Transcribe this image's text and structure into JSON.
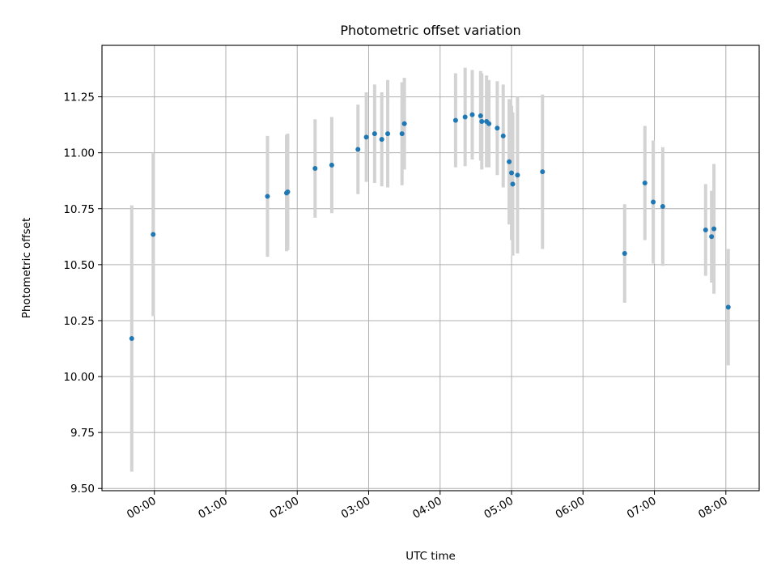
{
  "chart_data": {
    "type": "scatter",
    "title": "Photometric offset variation",
    "xlabel": "UTC time",
    "ylabel": "Photometric offset",
    "x_unit": "UTC time (HH:MM)",
    "xlim": [
      "-00:44",
      "08:28"
    ],
    "ylim": [
      9.49,
      11.48
    ],
    "x_ticks": [
      "00:00",
      "01:00",
      "02:00",
      "03:00",
      "04:00",
      "05:00",
      "06:00",
      "07:00",
      "08:00"
    ],
    "y_ticks": [
      "9.50",
      "9.75",
      "10.00",
      "10.25",
      "10.50",
      "10.75",
      "11.00",
      "11.25"
    ],
    "grid": true,
    "colors": {
      "point": "#1f77b4",
      "errorbar": "#d3d3d3",
      "grid": "#b0b0b0"
    },
    "points": [
      {
        "x": "-00:19",
        "y": 10.17,
        "err": 0.595
      },
      {
        "x": "-00:01",
        "y": 10.635,
        "err": 0.365
      },
      {
        "x": "01:35",
        "y": 10.805,
        "err": 0.27
      },
      {
        "x": "01:51",
        "y": 10.82,
        "err": 0.26
      },
      {
        "x": "01:52",
        "y": 10.825,
        "err": 0.26
      },
      {
        "x": "02:15",
        "y": 10.93,
        "err": 0.22
      },
      {
        "x": "02:29",
        "y": 10.945,
        "err": 0.215
      },
      {
        "x": "02:51",
        "y": 11.015,
        "err": 0.2
      },
      {
        "x": "02:58",
        "y": 11.07,
        "err": 0.2
      },
      {
        "x": "03:05",
        "y": 11.085,
        "err": 0.22
      },
      {
        "x": "03:11",
        "y": 11.06,
        "err": 0.21
      },
      {
        "x": "03:16",
        "y": 11.085,
        "err": 0.24
      },
      {
        "x": "03:28",
        "y": 11.085,
        "err": 0.23
      },
      {
        "x": "03:30",
        "y": 11.13,
        "err": 0.205
      },
      {
        "x": "04:13",
        "y": 11.145,
        "err": 0.21
      },
      {
        "x": "04:21",
        "y": 11.16,
        "err": 0.22
      },
      {
        "x": "04:27",
        "y": 11.17,
        "err": 0.2
      },
      {
        "x": "04:34",
        "y": 11.165,
        "err": 0.2
      },
      {
        "x": "04:35",
        "y": 11.14,
        "err": 0.215
      },
      {
        "x": "04:39",
        "y": 11.14,
        "err": 0.205
      },
      {
        "x": "04:41",
        "y": 11.13,
        "err": 0.195
      },
      {
        "x": "04:48",
        "y": 11.11,
        "err": 0.21
      },
      {
        "x": "04:53",
        "y": 11.075,
        "err": 0.23
      },
      {
        "x": "04:58",
        "y": 10.96,
        "err": 0.28
      },
      {
        "x": "05:00",
        "y": 10.91,
        "err": 0.3
      },
      {
        "x": "05:01",
        "y": 10.86,
        "err": 0.32
      },
      {
        "x": "05:05",
        "y": 10.9,
        "err": 0.35
      },
      {
        "x": "05:26",
        "y": 10.915,
        "err": 0.345
      },
      {
        "x": "06:35",
        "y": 10.55,
        "err": 0.22
      },
      {
        "x": "06:52",
        "y": 10.865,
        "err": 0.255
      },
      {
        "x": "06:59",
        "y": 10.78,
        "err": 0.275
      },
      {
        "x": "07:07",
        "y": 10.76,
        "err": 0.265
      },
      {
        "x": "07:43",
        "y": 10.655,
        "err": 0.205
      },
      {
        "x": "07:48",
        "y": 10.625,
        "err": 0.205
      },
      {
        "x": "07:50",
        "y": 10.66,
        "err": 0.29
      },
      {
        "x": "08:02",
        "y": 10.31,
        "err": 0.26
      }
    ]
  }
}
